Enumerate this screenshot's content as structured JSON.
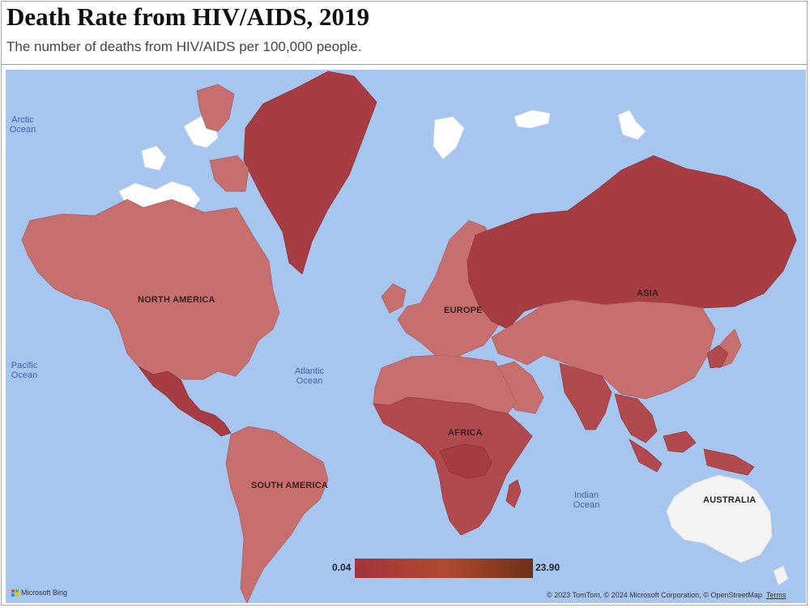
{
  "header": {
    "title": "Death Rate from HIV/AIDS, 2019",
    "subtitle": "The number of deaths from HIV/AIDS per 100,000 people."
  },
  "map": {
    "ocean_labels": {
      "arctic": "Arctic\nOcean",
      "pacific": "Pacific\nOcean",
      "atlantic": "Atlantic\nOcean",
      "indian": "Indian\nOcean"
    },
    "continent_labels": {
      "north_america": "NORTH AMERICA",
      "south_america": "SOUTH AMERICA",
      "europe": "EUROPE",
      "africa": "AFRICA",
      "asia": "ASIA",
      "australia": "AUSTRALIA"
    },
    "legend": {
      "min": "0.04",
      "max": "23.90",
      "colors": [
        "#a3343c",
        "#b24a30",
        "#6e3017"
      ]
    },
    "brand": "Microsoft Bing",
    "copyright": {
      "text": "© 2023 TomTom, © 2024 Microsoft Corporation, © OpenStreetMap",
      "terms": "Terms"
    },
    "colors": {
      "ocean": "#a6c6f0",
      "low": "#c76f6f",
      "high": "#a73d42",
      "no_data": "#f3f3f3"
    }
  }
}
